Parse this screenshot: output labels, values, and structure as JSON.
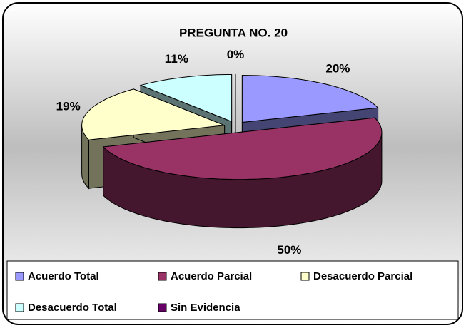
{
  "chart_data": {
    "type": "pie",
    "title": "PREGUNTA NO. 20",
    "categories": [
      "Acuerdo Total",
      "Acuerdo Parcial",
      "Desacuerdo Parcial",
      "Desacuerdo Total",
      "Sin Evidencia"
    ],
    "values": [
      20,
      50,
      19,
      11,
      0
    ],
    "value_labels": [
      "20%",
      "50%",
      "19%",
      "11%",
      "0%"
    ],
    "colors": [
      "#9999ff",
      "#993366",
      "#ffffcc",
      "#ccffff",
      "#660066"
    ],
    "legend": "bottom"
  }
}
